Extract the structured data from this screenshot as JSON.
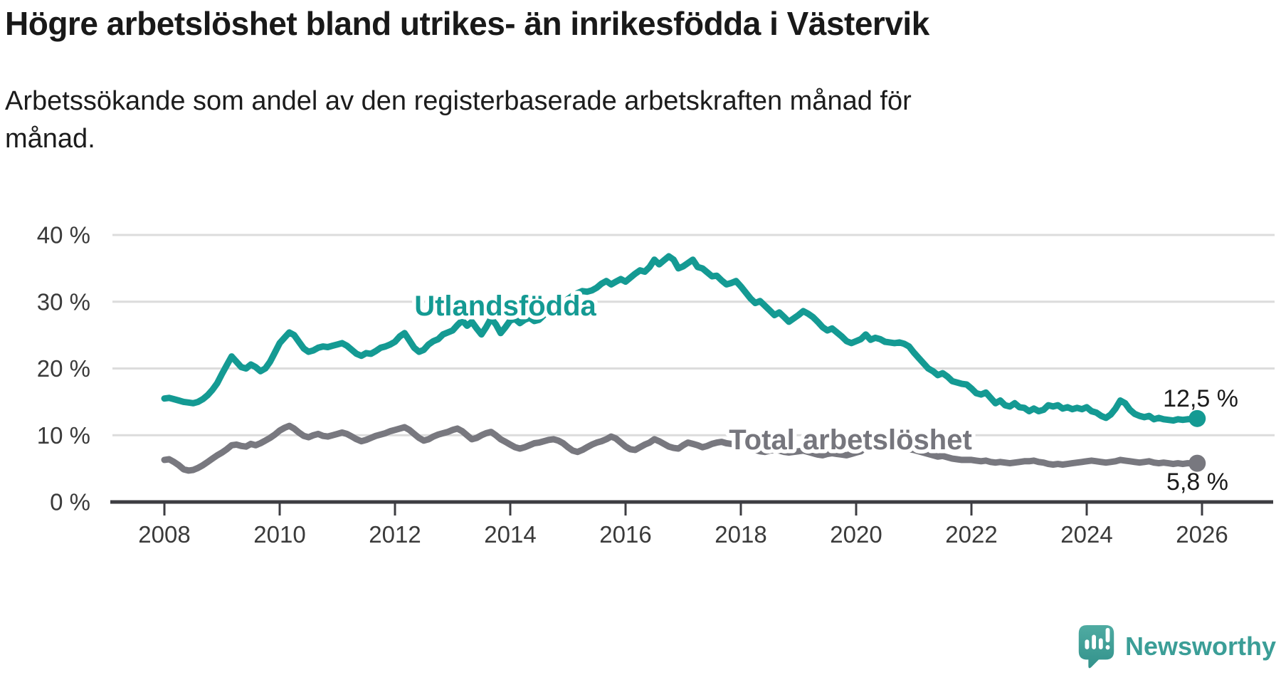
{
  "header": {
    "title": "Högre arbetslöshet bland utrikes- än inrikesfödda i Västervik",
    "subtitle_line1": "Arbetssökande som andel av den registerbaserade arbetskraften månad för",
    "subtitle_line2": "månad."
  },
  "chart_data": {
    "type": "line",
    "title": "",
    "xlabel": "",
    "ylabel": "",
    "ylim": [
      0,
      40
    ],
    "grid": "horizontal",
    "x_unit": "monthly from January 2008 to December 2025",
    "x_ticks": [
      {
        "label": "2008",
        "year": 2008
      },
      {
        "label": "2010",
        "year": 2010
      },
      {
        "label": "2012",
        "year": 2012
      },
      {
        "label": "2014",
        "year": 2014
      },
      {
        "label": "2016",
        "year": 2016
      },
      {
        "label": "2018",
        "year": 2018
      },
      {
        "label": "2020",
        "year": 2020
      },
      {
        "label": "2022",
        "year": 2022
      },
      {
        "label": "2024",
        "year": 2024
      },
      {
        "label": "2026",
        "year": 2026
      }
    ],
    "y_ticks": [
      {
        "label": "0 %",
        "value": 0
      },
      {
        "label": "10 %",
        "value": 10
      },
      {
        "label": "20 %",
        "value": 20
      },
      {
        "label": "30 %",
        "value": 30
      },
      {
        "label": "40 %",
        "value": 40
      }
    ],
    "series": [
      {
        "name": "Utlandsfödda",
        "color": "#149a93",
        "end_label": "12,5 %",
        "end_value": 12.5,
        "start": "2008-01",
        "values": [
          15.5,
          15.6,
          15.4,
          15.2,
          15.0,
          14.9,
          14.8,
          15.0,
          15.4,
          16.0,
          16.8,
          17.8,
          19.2,
          20.5,
          21.8,
          21.0,
          20.2,
          20.0,
          20.6,
          20.2,
          19.6,
          20.0,
          21.0,
          22.4,
          23.8,
          24.6,
          25.4,
          25.0,
          24.0,
          23.0,
          22.5,
          22.7,
          23.1,
          23.3,
          23.2,
          23.4,
          23.6,
          23.8,
          23.4,
          22.8,
          22.2,
          21.9,
          22.3,
          22.2,
          22.6,
          23.1,
          23.3,
          23.6,
          24.0,
          24.8,
          25.3,
          24.2,
          23.1,
          22.5,
          22.8,
          23.6,
          24.1,
          24.4,
          25.1,
          25.4,
          25.7,
          26.5,
          27.2,
          26.4,
          27.0,
          26.0,
          25.1,
          26.2,
          27.5,
          26.6,
          25.3,
          26.2,
          27.2,
          27.4,
          26.8,
          27.3,
          27.6,
          27.1,
          27.3,
          28.0,
          28.6,
          29.0,
          29.4,
          29.9,
          30.4,
          30.9,
          31.3,
          31.6,
          31.5,
          31.7,
          32.1,
          32.7,
          33.1,
          32.6,
          33.0,
          33.4,
          33.0,
          33.6,
          34.2,
          34.7,
          34.5,
          35.2,
          36.3,
          35.6,
          36.2,
          36.8,
          36.3,
          35.0,
          35.3,
          35.8,
          36.3,
          35.2,
          35.0,
          34.4,
          33.8,
          33.9,
          33.2,
          32.6,
          32.8,
          33.1,
          32.3,
          31.4,
          30.5,
          29.8,
          30.1,
          29.4,
          28.7,
          28.0,
          28.4,
          27.7,
          27.0,
          27.5,
          28.0,
          28.6,
          28.2,
          27.7,
          27.0,
          26.2,
          25.7,
          26.0,
          25.4,
          24.8,
          24.1,
          23.8,
          24.1,
          24.4,
          25.1,
          24.3,
          24.6,
          24.4,
          24.0,
          23.9,
          23.8,
          23.9,
          23.7,
          23.3,
          22.4,
          21.6,
          20.8,
          20.0,
          19.6,
          19.0,
          19.3,
          18.8,
          18.1,
          17.9,
          17.7,
          17.6,
          17.0,
          16.3,
          16.1,
          16.4,
          15.6,
          14.8,
          15.2,
          14.5,
          14.3,
          14.8,
          14.2,
          14.1,
          13.6,
          14.0,
          13.6,
          13.8,
          14.5,
          14.3,
          14.5,
          14.0,
          14.2,
          13.9,
          14.1,
          13.9,
          14.2,
          13.6,
          13.4,
          12.9,
          12.6,
          13.1,
          14.0,
          15.2,
          14.8,
          13.8,
          13.2,
          12.9,
          12.7,
          12.9,
          12.4,
          12.6,
          12.4,
          12.3,
          12.2,
          12.4,
          12.3,
          12.4,
          12.4,
          12.5
        ]
      },
      {
        "name": "Total arbetslöshet",
        "color": "#78787f",
        "end_label": "5,8 %",
        "end_value": 5.8,
        "start": "2008-01",
        "values": [
          6.3,
          6.4,
          6.0,
          5.5,
          4.9,
          4.7,
          4.8,
          5.1,
          5.5,
          6.0,
          6.5,
          7.0,
          7.4,
          7.9,
          8.5,
          8.6,
          8.4,
          8.3,
          8.7,
          8.5,
          8.8,
          9.2,
          9.6,
          10.1,
          10.7,
          11.1,
          11.4,
          11.0,
          10.4,
          9.9,
          9.7,
          10.0,
          10.2,
          9.9,
          9.8,
          10.0,
          10.2,
          10.4,
          10.2,
          9.8,
          9.4,
          9.1,
          9.3,
          9.6,
          9.9,
          10.1,
          10.3,
          10.6,
          10.8,
          11.0,
          11.2,
          10.8,
          10.2,
          9.6,
          9.2,
          9.4,
          9.8,
          10.1,
          10.3,
          10.5,
          10.8,
          11.0,
          10.6,
          10.0,
          9.4,
          9.6,
          10.0,
          10.3,
          10.5,
          10.0,
          9.4,
          9.0,
          8.6,
          8.2,
          8.0,
          8.2,
          8.5,
          8.8,
          8.9,
          9.1,
          9.3,
          9.4,
          9.2,
          8.8,
          8.2,
          7.7,
          7.5,
          7.8,
          8.2,
          8.6,
          8.9,
          9.1,
          9.4,
          9.8,
          9.5,
          8.9,
          8.3,
          7.9,
          7.8,
          8.2,
          8.6,
          8.9,
          9.4,
          9.1,
          8.7,
          8.3,
          8.1,
          8.0,
          8.5,
          8.9,
          8.7,
          8.5,
          8.2,
          8.4,
          8.7,
          8.9,
          9.0,
          8.8,
          8.7,
          8.7,
          8.5,
          8.3,
          8.0,
          7.8,
          7.6,
          7.5,
          7.7,
          7.8,
          7.7,
          7.5,
          7.4,
          7.5,
          7.6,
          7.7,
          7.5,
          7.3,
          7.1,
          7.0,
          7.2,
          7.3,
          7.2,
          7.1,
          7.0,
          7.2,
          7.4,
          7.6,
          8.3,
          8.7,
          8.9,
          9.0,
          9.1,
          8.9,
          8.6,
          8.3,
          8.1,
          7.9,
          7.8,
          7.6,
          7.4,
          7.2,
          7.0,
          6.8,
          6.9,
          6.7,
          6.5,
          6.4,
          6.3,
          6.3,
          6.3,
          6.2,
          6.1,
          6.2,
          6.0,
          5.9,
          6.0,
          5.9,
          5.8,
          5.9,
          6.0,
          6.1,
          6.1,
          6.2,
          6.0,
          5.9,
          5.7,
          5.6,
          5.7,
          5.6,
          5.7,
          5.8,
          5.9,
          6.0,
          6.1,
          6.2,
          6.1,
          6.0,
          5.9,
          6.0,
          6.1,
          6.3,
          6.2,
          6.1,
          6.0,
          5.9,
          6.0,
          6.1,
          5.9,
          5.8,
          5.9,
          5.8,
          5.7,
          5.8,
          5.7,
          5.8,
          5.8,
          5.8
        ]
      }
    ],
    "annotations": [
      {
        "text": "Utlandsfödda",
        "series": 0
      },
      {
        "text": "Total arbetslöshet",
        "series": 1
      },
      {
        "text": "12,5 %",
        "series": 0
      },
      {
        "text": "5,8 %",
        "series": 1
      }
    ]
  },
  "style_colors": {
    "axis": "#3d3d42",
    "tick_label": "#3a3a3a",
    "grid": "#dcdcdc",
    "annotation_text": "#1a1a1a",
    "background": "#ffffff",
    "logo_teal": "#3b9e97",
    "logo_icon_top": "#4faba2",
    "logo_icon_bottom": "#33928b"
  },
  "logo": {
    "text": "Newsworthy",
    "icon": "newsworthy-speech-bubble-bar-chart-icon"
  }
}
